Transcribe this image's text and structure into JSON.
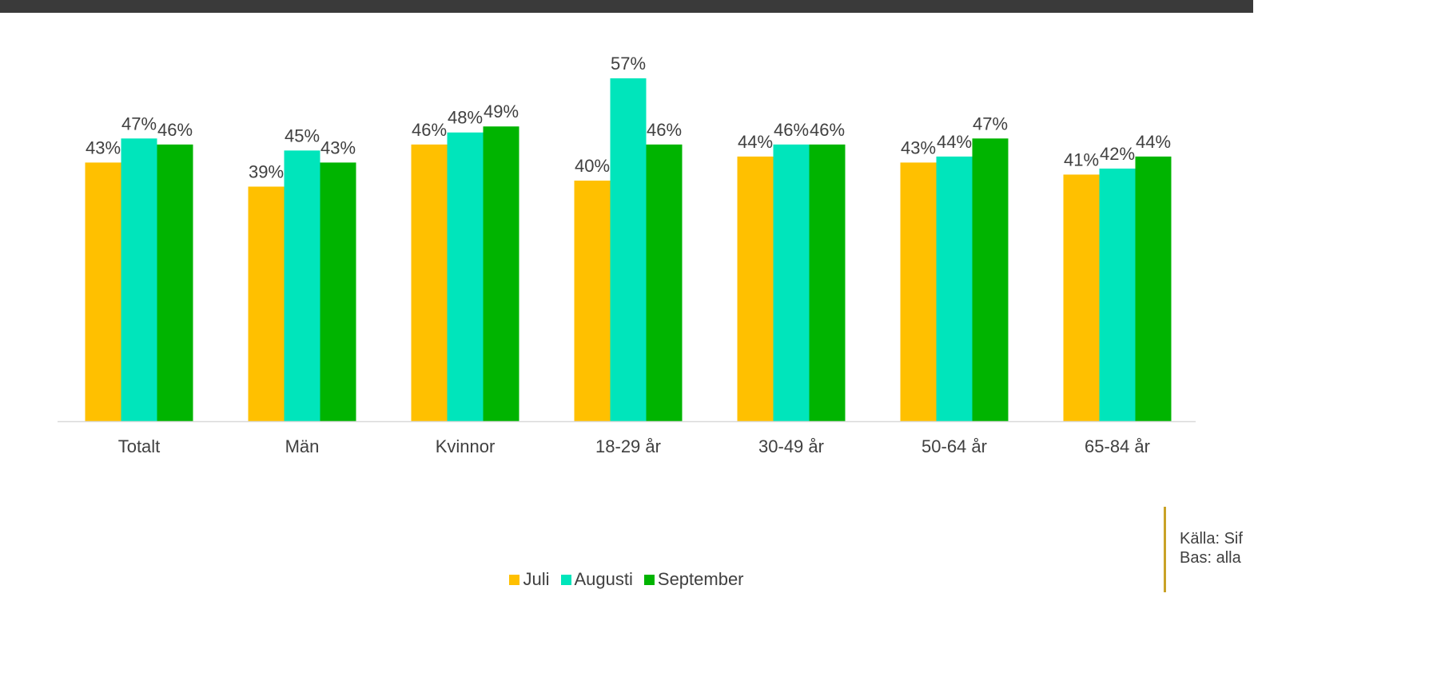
{
  "colors": {
    "juli": "#ffc000",
    "augusti": "#00e5bb",
    "september": "#00b400",
    "axis": "#d9d9d9",
    "top_bar": "#3a3a3a",
    "source_accent": "#c9a227"
  },
  "legend": {
    "items": [
      {
        "label": "Juli"
      },
      {
        "label": "Augusti"
      },
      {
        "label": "September"
      }
    ]
  },
  "source": {
    "line1": "Källa: Sif",
    "line2": "Bas: alla"
  },
  "chart_data": {
    "type": "bar",
    "categories": [
      "Totalt",
      "Män",
      "Kvinnor",
      "18-29 år",
      "30-49 år",
      "50-64 år",
      "65-84 år"
    ],
    "series": [
      {
        "name": "Juli",
        "values": [
          43,
          39,
          46,
          40,
          44,
          43,
          41
        ]
      },
      {
        "name": "Augusti",
        "values": [
          47,
          45,
          48,
          57,
          46,
          44,
          42
        ]
      },
      {
        "name": "September",
        "values": [
          46,
          43,
          49,
          46,
          46,
          47,
          44
        ]
      }
    ],
    "value_suffix": "%",
    "ylim": [
      0,
      57
    ],
    "grid": false,
    "legend_position": "bottom"
  }
}
